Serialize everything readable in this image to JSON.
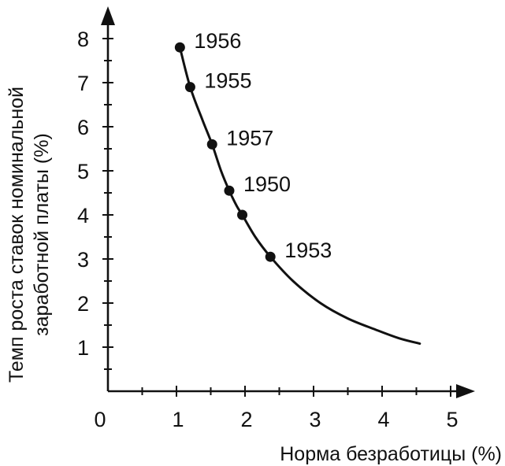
{
  "chart_data": {
    "type": "line",
    "title": "",
    "xlabel": "Норма безработицы (%)",
    "ylabel_line1": "Темп роста ставок номинальной",
    "ylabel_line2": "заработной платы (%)",
    "xlim": [
      0,
      5.3
    ],
    "ylim": [
      0,
      8.8
    ],
    "x_ticks": [
      "0",
      "1",
      "2",
      "3",
      "4",
      "5"
    ],
    "y_ticks": [
      "1",
      "2",
      "3",
      "4",
      "5",
      "6",
      "7",
      "8"
    ],
    "grid": false,
    "curve": [
      {
        "x": 1.05,
        "y": 7.8
      },
      {
        "x": 1.2,
        "y": 6.9
      },
      {
        "x": 1.38,
        "y": 6.15
      },
      {
        "x": 1.52,
        "y": 5.6
      },
      {
        "x": 1.65,
        "y": 5.0
      },
      {
        "x": 1.77,
        "y": 4.55
      },
      {
        "x": 1.88,
        "y": 4.2
      },
      {
        "x": 1.96,
        "y": 4.0
      },
      {
        "x": 2.15,
        "y": 3.5
      },
      {
        "x": 2.37,
        "y": 3.05
      },
      {
        "x": 2.7,
        "y": 2.5
      },
      {
        "x": 3.1,
        "y": 2.0
      },
      {
        "x": 3.5,
        "y": 1.65
      },
      {
        "x": 3.9,
        "y": 1.4
      },
      {
        "x": 4.25,
        "y": 1.2
      },
      {
        "x": 4.55,
        "y": 1.08
      }
    ],
    "points": [
      {
        "label": "1956",
        "x": 1.05,
        "y": 7.8
      },
      {
        "label": "1955",
        "x": 1.2,
        "y": 6.9
      },
      {
        "label": "1957",
        "x": 1.52,
        "y": 5.6
      },
      {
        "label": "1950",
        "x": 1.77,
        "y": 4.55
      },
      {
        "label": null,
        "x": 1.96,
        "y": 4.0
      },
      {
        "label": "1953",
        "x": 2.37,
        "y": 3.05
      }
    ]
  }
}
